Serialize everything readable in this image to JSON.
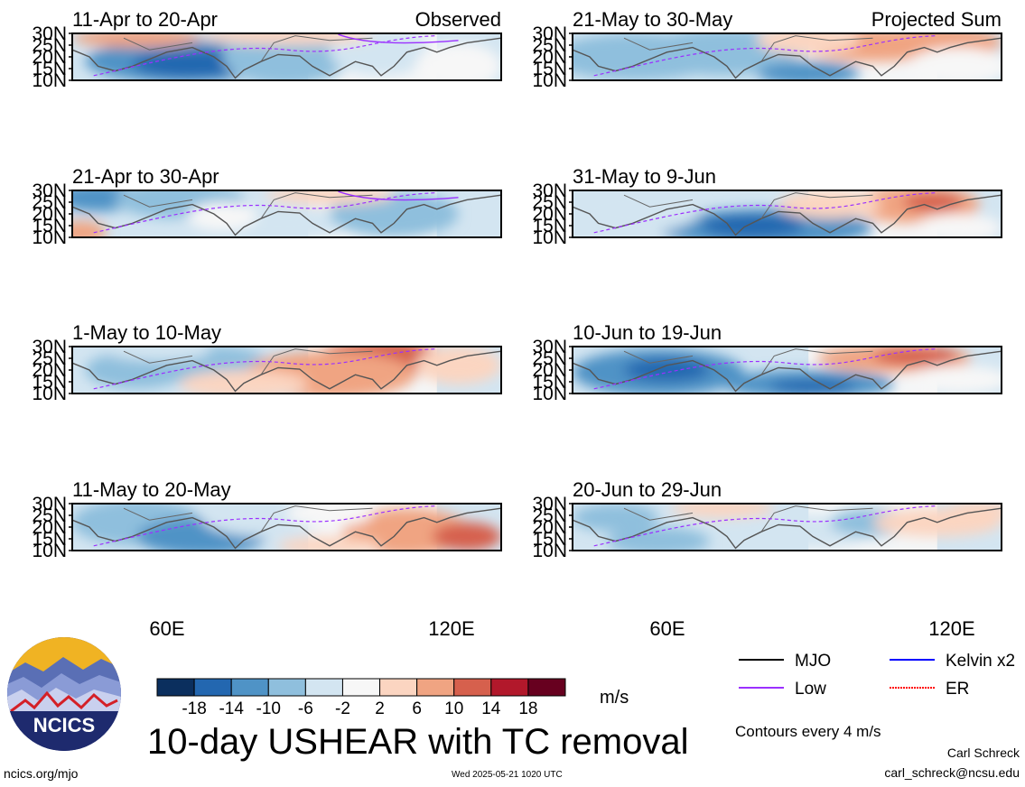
{
  "panels": [
    {
      "date_label": "11-Apr to 20-Apr",
      "corner_label": "Observed"
    },
    {
      "date_label": "21-May to 30-May",
      "corner_label": "Projected Sum"
    },
    {
      "date_label": "21-Apr to 30-Apr",
      "corner_label": ""
    },
    {
      "date_label": "31-May to 9-Jun",
      "corner_label": ""
    },
    {
      "date_label": "1-May to 10-May",
      "corner_label": ""
    },
    {
      "date_label": "10-Jun to 19-Jun",
      "corner_label": ""
    },
    {
      "date_label": "11-May to 20-May",
      "corner_label": ""
    },
    {
      "date_label": "20-Jun to 29-Jun",
      "corner_label": ""
    }
  ],
  "lat_labels": [
    "30N",
    "25N",
    "20N",
    "15N",
    "10N"
  ],
  "lon_labels": [
    "60E",
    "120E"
  ],
  "colorbar": {
    "ticks": [
      "-18",
      "-14",
      "-10",
      "-6",
      "-2",
      "2",
      "6",
      "10",
      "14",
      "18"
    ],
    "colors": [
      "#0b2f5e",
      "#2367b0",
      "#4f93c6",
      "#8fbfdd",
      "#d3e5f1",
      "#f7f7f7",
      "#fbd5c1",
      "#f0a482",
      "#d6604d",
      "#b2182b",
      "#67001f"
    ],
    "units": "m/s"
  },
  "legend": [
    {
      "label": "MJO",
      "color": "#000000",
      "style": "solid"
    },
    {
      "label": "Kelvin x2",
      "color": "#0000ff",
      "style": "solid"
    },
    {
      "label": "Low",
      "color": "#9b30ff",
      "style": "solid"
    },
    {
      "label": "ER",
      "color": "#ff0000",
      "style": "dotted"
    }
  ],
  "title": "10-day USHEAR with TC removal",
  "contours_note": "Contours every 4 m/s",
  "author": "Carl Schreck",
  "email": "carl_schreck@ncsu.edu",
  "site": "ncics.org/mjo",
  "timestamp": "Wed 2025-05-21 1020 UTC",
  "logo_text": "NCICS"
}
